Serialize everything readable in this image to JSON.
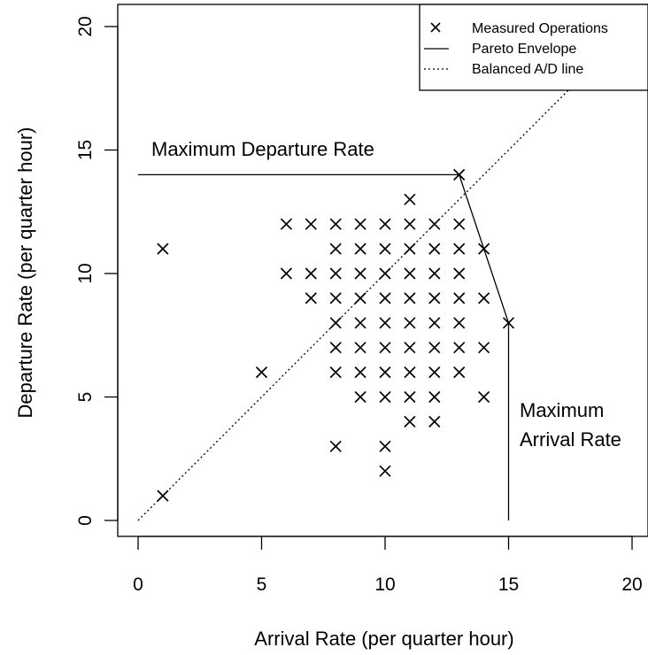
{
  "chart_data": {
    "type": "scatter",
    "xlabel": "Arrival Rate (per quarter hour)",
    "ylabel": "Departure Rate (per quarter hour)",
    "xlim": [
      0,
      20
    ],
    "ylim": [
      0,
      20
    ],
    "xticks": [
      "0",
      "5",
      "10",
      "15",
      "20"
    ],
    "yticks": [
      "0",
      "5",
      "10",
      "15",
      "20"
    ],
    "grid": false,
    "legend_position": "top-right",
    "legend": [
      {
        "label": "Measured Operations",
        "marker": "x"
      },
      {
        "label": "Pareto Envelope",
        "linestyle": "solid"
      },
      {
        "label": "Balanced A/D line",
        "linestyle": "dotted"
      }
    ],
    "annotations": [
      {
        "text": "Maximum Departure Rate",
        "x": 0.5,
        "y": 15
      },
      {
        "text": "Maximum",
        "x": 15.5,
        "y": 4.4
      },
      {
        "text": "Arrival Rate",
        "x": 15.5,
        "y": 3.2
      }
    ],
    "series": [
      {
        "name": "Measured Operations",
        "type": "scatter",
        "points": [
          [
            1,
            1
          ],
          [
            1,
            11
          ],
          [
            5,
            6
          ],
          [
            6,
            10
          ],
          [
            6,
            12
          ],
          [
            7,
            9
          ],
          [
            7,
            10
          ],
          [
            7,
            12
          ],
          [
            8,
            3
          ],
          [
            8,
            6
          ],
          [
            8,
            7
          ],
          [
            8,
            8
          ],
          [
            8,
            9
          ],
          [
            8,
            10
          ],
          [
            8,
            11
          ],
          [
            8,
            12
          ],
          [
            9,
            5
          ],
          [
            9,
            6
          ],
          [
            9,
            7
          ],
          [
            9,
            8
          ],
          [
            9,
            9
          ],
          [
            9,
            10
          ],
          [
            9,
            11
          ],
          [
            9,
            12
          ],
          [
            10,
            2
          ],
          [
            10,
            3
          ],
          [
            10,
            5
          ],
          [
            10,
            6
          ],
          [
            10,
            7
          ],
          [
            10,
            8
          ],
          [
            10,
            9
          ],
          [
            10,
            10
          ],
          [
            10,
            11
          ],
          [
            10,
            12
          ],
          [
            11,
            4
          ],
          [
            11,
            5
          ],
          [
            11,
            6
          ],
          [
            11,
            7
          ],
          [
            11,
            8
          ],
          [
            11,
            9
          ],
          [
            11,
            10
          ],
          [
            11,
            11
          ],
          [
            11,
            12
          ],
          [
            11,
            13
          ],
          [
            12,
            4
          ],
          [
            12,
            5
          ],
          [
            12,
            6
          ],
          [
            12,
            7
          ],
          [
            12,
            8
          ],
          [
            12,
            9
          ],
          [
            12,
            10
          ],
          [
            12,
            11
          ],
          [
            12,
            12
          ],
          [
            13,
            6
          ],
          [
            13,
            7
          ],
          [
            13,
            8
          ],
          [
            13,
            9
          ],
          [
            13,
            10
          ],
          [
            13,
            11
          ],
          [
            13,
            12
          ],
          [
            13,
            14
          ],
          [
            14,
            5
          ],
          [
            14,
            7
          ],
          [
            14,
            9
          ],
          [
            14,
            11
          ],
          [
            15,
            8
          ]
        ]
      },
      {
        "name": "Pareto Envelope",
        "type": "line",
        "points": [
          [
            0,
            14
          ],
          [
            13,
            14
          ],
          [
            15,
            8
          ],
          [
            15,
            0
          ]
        ]
      },
      {
        "name": "Balanced A/D line",
        "type": "line",
        "points": [
          [
            0,
            0
          ],
          [
            20,
            20
          ]
        ]
      }
    ]
  }
}
